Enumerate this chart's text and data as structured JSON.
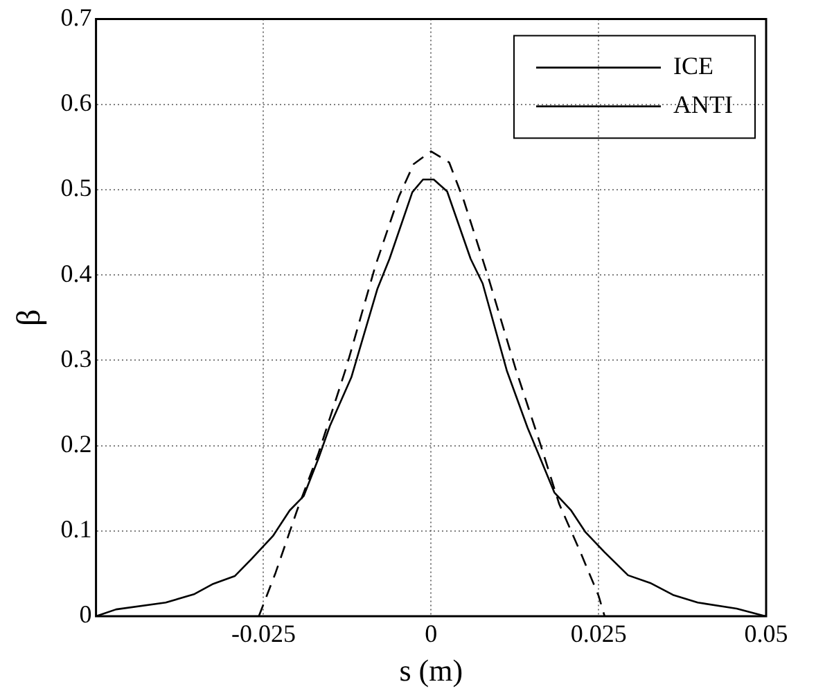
{
  "chart_data": {
    "type": "line",
    "xlabel": "s (m)",
    "ylabel": "β",
    "xlim": [
      -0.05,
      0.05
    ],
    "xticks": [
      -0.025,
      0,
      0.025,
      0.05
    ],
    "ylim": [
      0,
      0.7
    ],
    "yticks": [
      0,
      0.1,
      0.2,
      0.3,
      0.4,
      0.5,
      0.6,
      0.7
    ],
    "grid": true,
    "legend": "top right",
    "marker": "none",
    "series": [
      {
        "name": "ICE",
        "color": "#000000",
        "line_style": "dashed",
        "x": [
          -0.0257,
          -0.0232,
          -0.02,
          -0.0168,
          -0.0126,
          -0.0083,
          -0.0048,
          -0.0026,
          0,
          0.0027,
          0.0049,
          0.0084,
          0.0127,
          0.0163,
          0.0191,
          0.0224,
          0.025,
          0.0259
        ],
        "values": [
          0,
          0.051,
          0.124,
          0.191,
          0.293,
          0.411,
          0.492,
          0.53,
          0.545,
          0.532,
          0.487,
          0.401,
          0.288,
          0.202,
          0.132,
          0.073,
          0.024,
          0
        ]
      },
      {
        "name": "ANTI",
        "color": "#000000",
        "line_style": "solid",
        "x": [
          -0.05,
          -0.047,
          -0.0396,
          -0.0353,
          -0.0325,
          -0.0293,
          -0.0268,
          -0.0236,
          -0.0211,
          -0.019,
          -0.0168,
          -0.0151,
          -0.0119,
          -0.008,
          -0.0062,
          -0.0028,
          -0.0012,
          0.0004,
          0.0024,
          0.0059,
          0.0077,
          0.0113,
          0.0144,
          0.0184,
          0.0209,
          0.023,
          0.0259,
          0.0294,
          0.0327,
          0.0361,
          0.0398,
          0.0456,
          0.0499
        ],
        "values": [
          0,
          0.008,
          0.016,
          0.026,
          0.038,
          0.047,
          0.067,
          0.094,
          0.124,
          0.141,
          0.185,
          0.223,
          0.28,
          0.384,
          0.419,
          0.497,
          0.512,
          0.512,
          0.498,
          0.419,
          0.39,
          0.288,
          0.221,
          0.145,
          0.124,
          0.099,
          0.075,
          0.048,
          0.039,
          0.025,
          0.016,
          0.009,
          0
        ]
      }
    ]
  }
}
